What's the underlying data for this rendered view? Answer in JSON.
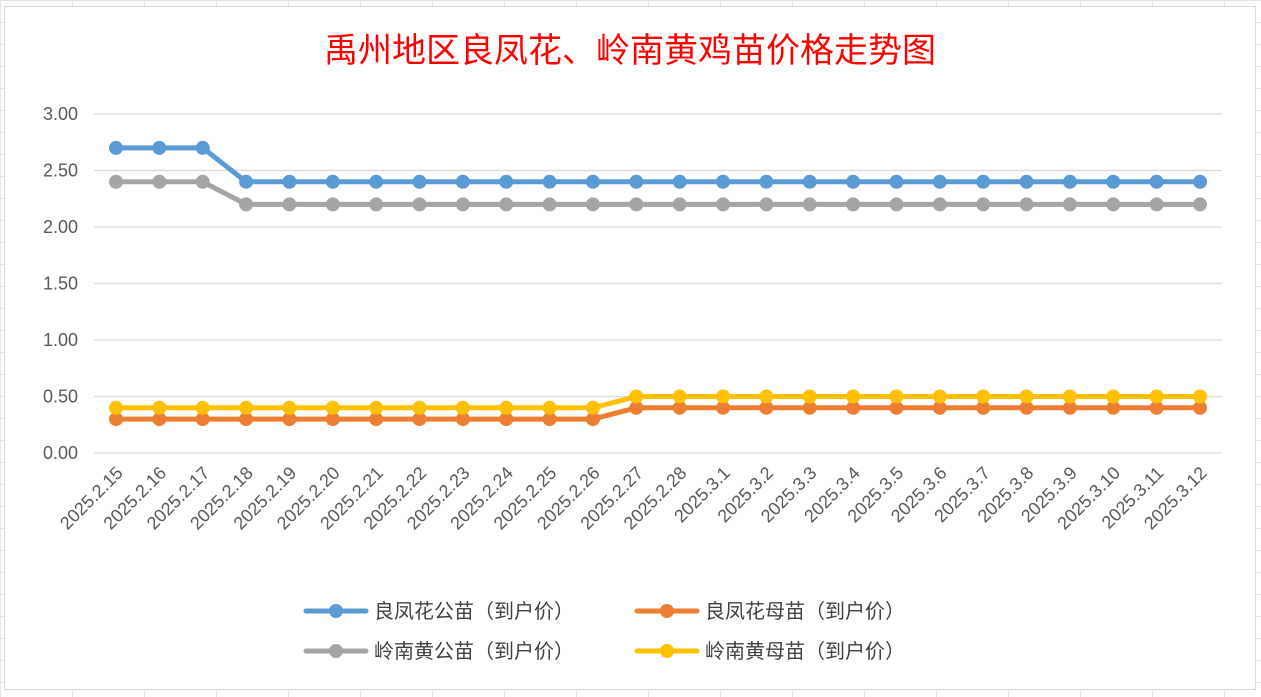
{
  "chart_data": {
    "type": "line",
    "title": "禹州地区良凤花、岭南黄鸡苗价格走势图",
    "xlabel": "",
    "ylabel": "",
    "ylim": [
      0,
      3
    ],
    "yticks": [
      "0.00",
      "0.50",
      "1.00",
      "1.50",
      "2.00",
      "2.50",
      "3.00"
    ],
    "grid": "horizontal",
    "legend_position": "bottom",
    "categories": [
      "2025.2.15",
      "2025.2.16",
      "2025.2.17",
      "2025.2.18",
      "2025.2.19",
      "2025.2.20",
      "2025.2.21",
      "2025.2.22",
      "2025.2.23",
      "2025.2.24",
      "2025.2.25",
      "2025.2.26",
      "2025.2.27",
      "2025.2.28",
      "2025.3.1",
      "2025.3.2",
      "2025.3.3",
      "2025.3.4",
      "2025.3.5",
      "2025.3.6",
      "2025.3.7",
      "2025.3.8",
      "2025.3.9",
      "2025.3.10",
      "2025.3.11",
      "2025.3.12"
    ],
    "series": [
      {
        "name": "良凤花公苗（到户价）",
        "color": "#5b9bd5",
        "values": [
          2.7,
          2.7,
          2.7,
          2.4,
          2.4,
          2.4,
          2.4,
          2.4,
          2.4,
          2.4,
          2.4,
          2.4,
          2.4,
          2.4,
          2.4,
          2.4,
          2.4,
          2.4,
          2.4,
          2.4,
          2.4,
          2.4,
          2.4,
          2.4,
          2.4,
          2.4
        ]
      },
      {
        "name": "良凤花母苗（到户价）",
        "color": "#ed7d31",
        "values": [
          0.3,
          0.3,
          0.3,
          0.3,
          0.3,
          0.3,
          0.3,
          0.3,
          0.3,
          0.3,
          0.3,
          0.3,
          0.4,
          0.4,
          0.4,
          0.4,
          0.4,
          0.4,
          0.4,
          0.4,
          0.4,
          0.4,
          0.4,
          0.4,
          0.4,
          0.4
        ]
      },
      {
        "name": "岭南黄公苗（到户价）",
        "color": "#a5a5a5",
        "values": [
          2.4,
          2.4,
          2.4,
          2.2,
          2.2,
          2.2,
          2.2,
          2.2,
          2.2,
          2.2,
          2.2,
          2.2,
          2.2,
          2.2,
          2.2,
          2.2,
          2.2,
          2.2,
          2.2,
          2.2,
          2.2,
          2.2,
          2.2,
          2.2,
          2.2,
          2.2
        ]
      },
      {
        "name": "岭南黄母苗（到户价）",
        "color": "#ffc000",
        "values": [
          0.4,
          0.4,
          0.4,
          0.4,
          0.4,
          0.4,
          0.4,
          0.4,
          0.4,
          0.4,
          0.4,
          0.4,
          0.5,
          0.5,
          0.5,
          0.5,
          0.5,
          0.5,
          0.5,
          0.5,
          0.5,
          0.5,
          0.5,
          0.5,
          0.5,
          0.5
        ]
      }
    ]
  }
}
